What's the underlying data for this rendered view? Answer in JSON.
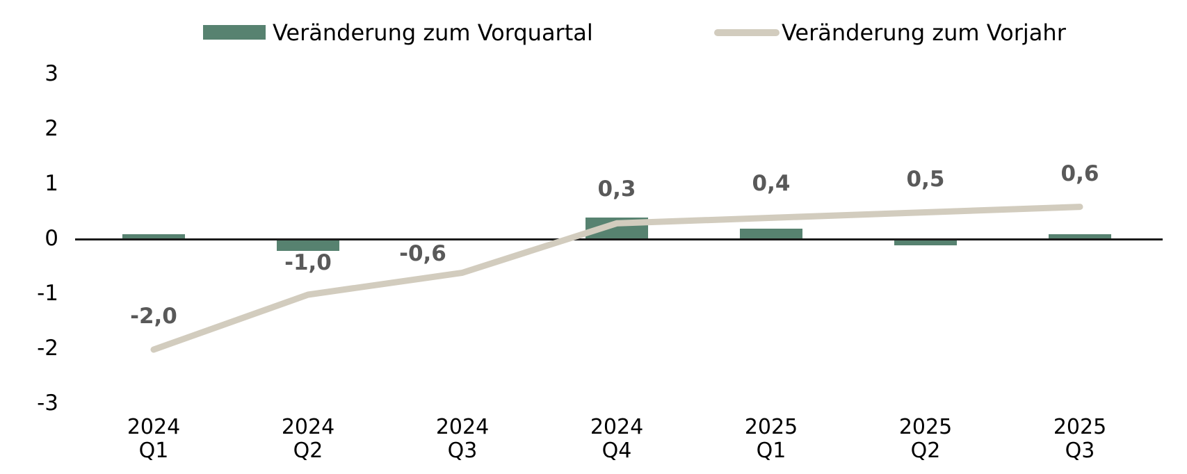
{
  "legend": {
    "items": [
      {
        "label": "Veränderung zum Vorquartal",
        "type": "bar",
        "color": "#578270"
      },
      {
        "label": "Veränderung zum Vorjahr",
        "type": "line",
        "color": "#D2CCBE"
      }
    ]
  },
  "chart_data": {
    "type": "combo",
    "categories": [
      {
        "line1": "2024",
        "line2": "Q1"
      },
      {
        "line1": "2024",
        "line2": "Q2"
      },
      {
        "line1": "2024",
        "line2": "Q3"
      },
      {
        "line1": "2024",
        "line2": "Q4"
      },
      {
        "line1": "2025",
        "line2": "Q1"
      },
      {
        "line1": "2025",
        "line2": "Q2"
      },
      {
        "line1": "2025",
        "line2": "Q3"
      }
    ],
    "series": [
      {
        "name": "Veränderung zum Vorquartal",
        "type": "bar",
        "color": "#578270",
        "values": [
          0.1,
          -0.2,
          0.0,
          0.4,
          0.2,
          -0.1,
          0.1
        ]
      },
      {
        "name": "Veränderung zum Vorjahr",
        "type": "line",
        "color": "#D2CCBE",
        "values": [
          -2.0,
          -1.0,
          -0.6,
          0.3,
          0.4,
          0.5,
          0.6
        ],
        "labels": [
          "-2,0",
          "-1,0",
          "-0,6",
          "0,3",
          "0,4",
          "0,5",
          "0,6"
        ],
        "label_color": "#595959"
      }
    ],
    "y_axis": {
      "min": -3,
      "max": 3,
      "ticks": [
        3,
        2,
        1,
        0,
        -1,
        -2,
        -3
      ]
    },
    "x_axis": {
      "zero_line_color": "#1a1a1a"
    },
    "grid": false,
    "legend_position": "top"
  }
}
